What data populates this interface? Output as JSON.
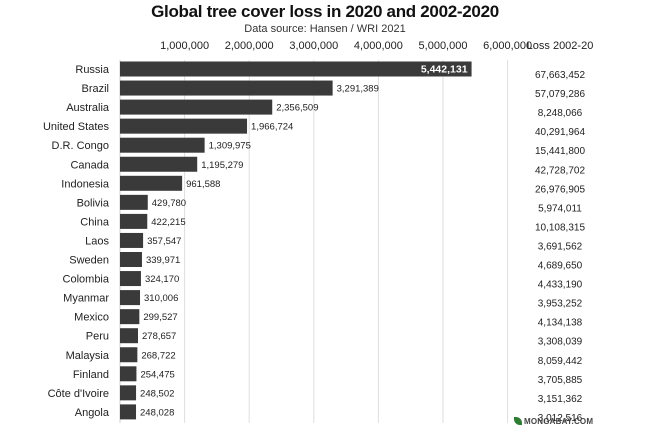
{
  "chart_data": {
    "type": "bar",
    "orientation": "horizontal",
    "title": "Global tree cover loss in 2020 and 2002-2020",
    "subtitle": "Data source: Hansen / WRI 2021",
    "x_ticks": [
      "1,000,000",
      "2,000,000",
      "3,000,000",
      "4,000,000",
      "5,000,000",
      "6,000,000"
    ],
    "x_tick_values": [
      1000000,
      2000000,
      3000000,
      4000000,
      5000000,
      6000000
    ],
    "xlim": [
      0,
      6500000
    ],
    "grid": true,
    "table_header": "Loss 2002-20",
    "categories": [
      "Russia",
      "Brazil",
      "Australia",
      "United States",
      "D.R. Congo",
      "Canada",
      "Indonesia",
      "Bolivia",
      "China",
      "Laos",
      "Sweden",
      "Colombia",
      "Myanmar",
      "Mexico",
      "Peru",
      "Malaysia",
      "Finland",
      "Côte d'Ivoire",
      "Angola"
    ],
    "values": [
      5442131,
      3291389,
      2356509,
      1966724,
      1309975,
      1195279,
      961588,
      429780,
      422215,
      357547,
      339971,
      324170,
      310006,
      299527,
      278657,
      268722,
      254475,
      248502,
      248028
    ],
    "value_labels": [
      "5,442,131",
      "3,291,389",
      "2,356,509",
      "1,966,724",
      "1,309,975",
      "1,195,279",
      "961,588",
      "429,780",
      "422,215",
      "357,547",
      "339,971",
      "324,170",
      "310,006",
      "299,527",
      "278,657",
      "268,722",
      "254,475",
      "248,502",
      "248,028"
    ],
    "loss_2002_20": [
      "67,663,452",
      "57,079,286",
      "8,248,066",
      "40,291,964",
      "15,441,800",
      "42,728,702",
      "26,976,905",
      "5,974,011",
      "10,108,315",
      "3,691,562",
      "4,689,650",
      "4,433,190",
      "3,953,252",
      "4,134,138",
      "3,308,039",
      "8,059,442",
      "3,705,885",
      "3,151,362",
      "3,012,516"
    ],
    "bar_color": "#3a3a3a",
    "label_inside_color": "#ffffff"
  },
  "brand": "MONGABAY.COM",
  "brand_icon": "mongabay-leaf-icon"
}
